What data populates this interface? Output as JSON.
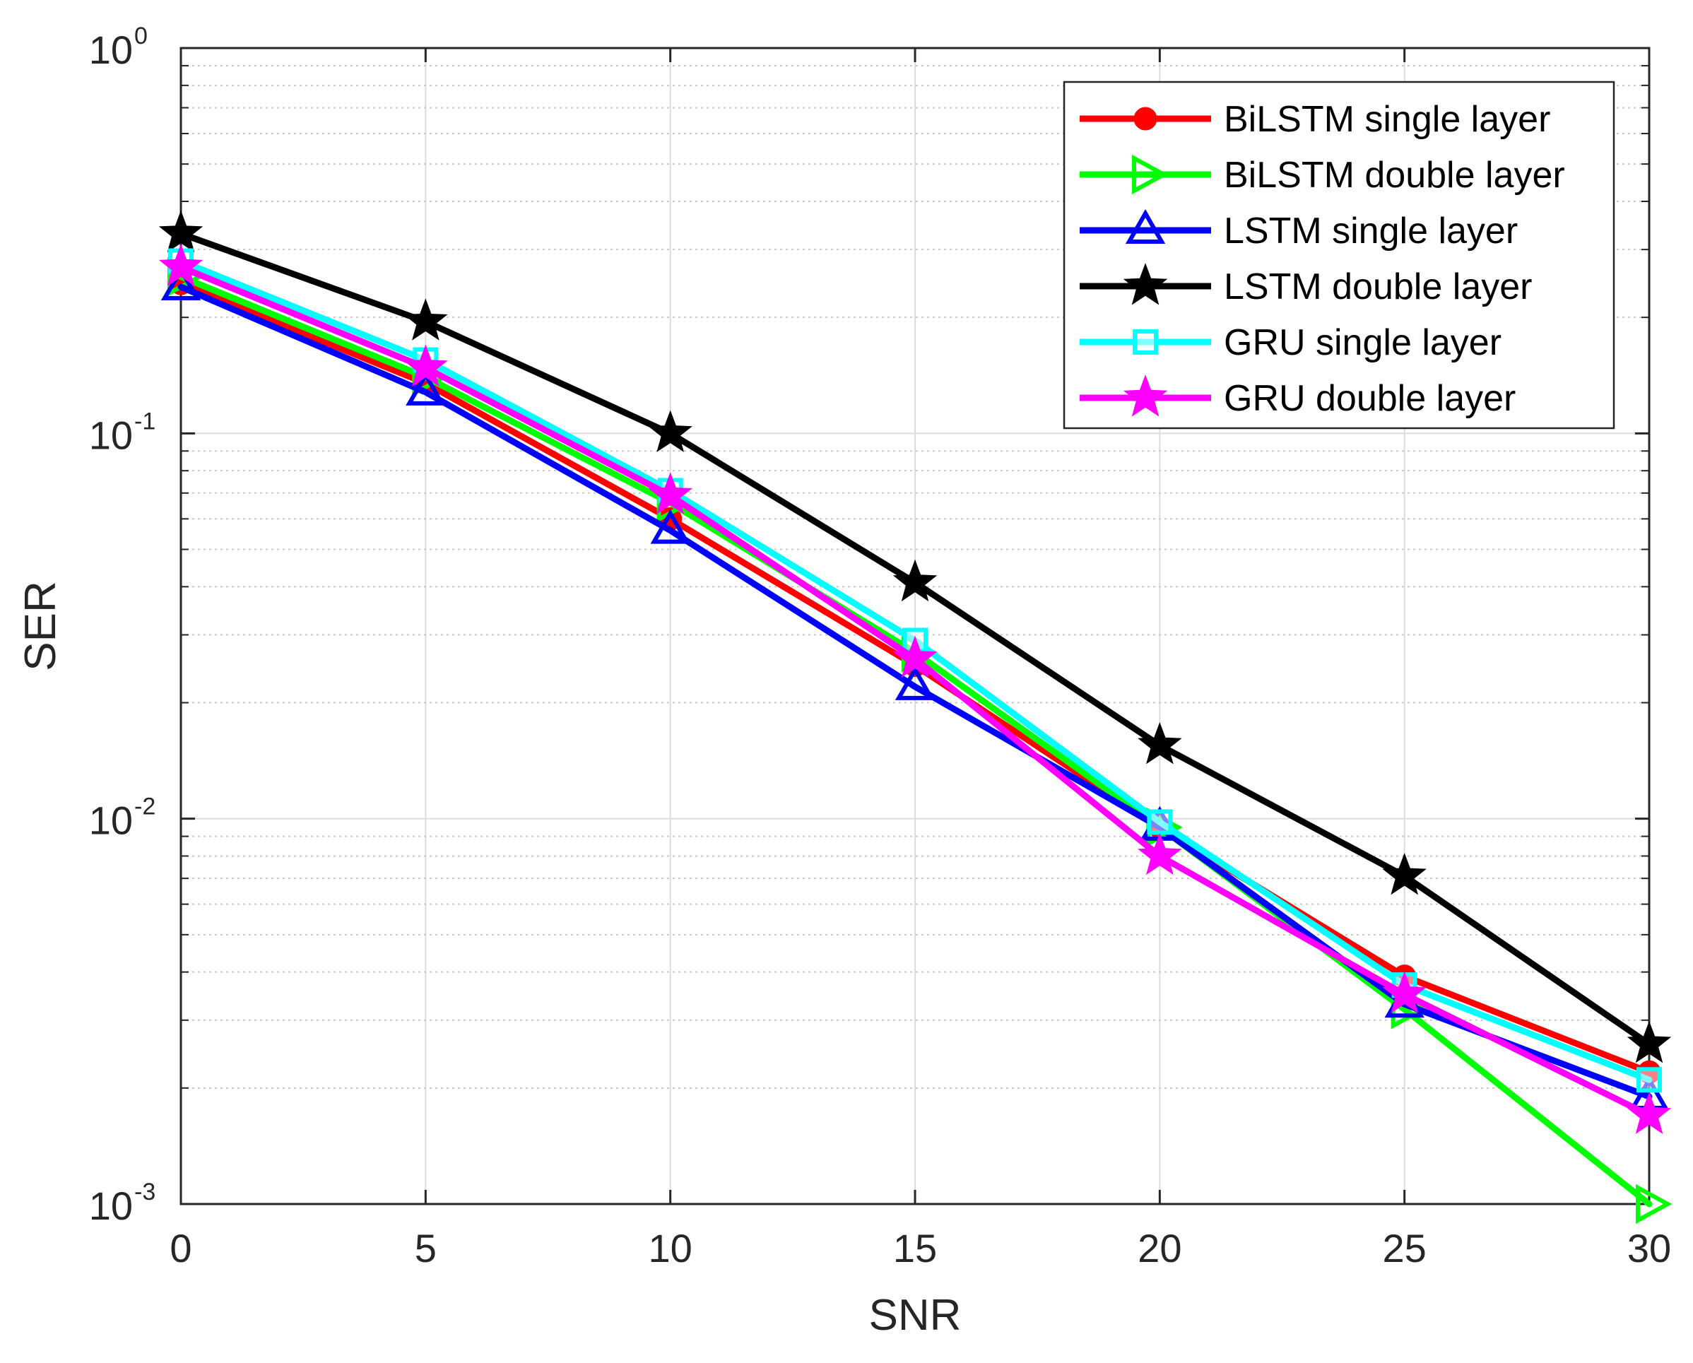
{
  "chart_data": {
    "type": "line",
    "title": "",
    "xlabel": "SNR",
    "ylabel": "SER",
    "x": [
      0,
      5,
      10,
      15,
      20,
      25,
      30
    ],
    "xlim": [
      0,
      30
    ],
    "ylim": [
      0.001,
      1
    ],
    "yscale": "log",
    "grid": true,
    "legend_position": "top-right",
    "x_ticks": [
      "0",
      "5",
      "10",
      "15",
      "20",
      "25",
      "30"
    ],
    "y_ticks": [
      {
        "value": 1,
        "base": "10",
        "exp": "0"
      },
      {
        "value": 0.1,
        "base": "10",
        "exp": "-1"
      },
      {
        "value": 0.01,
        "base": "10",
        "exp": "-2"
      },
      {
        "value": 0.001,
        "base": "10",
        "exp": "-3"
      }
    ],
    "series": [
      {
        "name": "BiLSTM single layer",
        "color": "#ff0000",
        "marker": "circle",
        "values": [
          0.245,
          0.135,
          0.06,
          0.025,
          0.0095,
          0.0039,
          0.0022
        ]
      },
      {
        "name": "BiLSTM double layer",
        "color": "#00ff00",
        "marker": "triangle-right",
        "values": [
          0.255,
          0.14,
          0.066,
          0.027,
          0.0095,
          0.0032,
          0.001
        ]
      },
      {
        "name": "LSTM single layer",
        "color": "#0000ff",
        "marker": "triangle-up",
        "values": [
          0.24,
          0.128,
          0.056,
          0.022,
          0.0095,
          0.0033,
          0.0019
        ]
      },
      {
        "name": "LSTM double layer",
        "color": "#000000",
        "marker": "star",
        "values": [
          0.33,
          0.195,
          0.1,
          0.041,
          0.0155,
          0.0071,
          0.0026
        ]
      },
      {
        "name": "GRU single layer",
        "color": "#00ffff",
        "marker": "square",
        "values": [
          0.28,
          0.155,
          0.071,
          0.029,
          0.0098,
          0.0037,
          0.0021
        ]
      },
      {
        "name": "GRU double layer",
        "color": "#ff00ff",
        "marker": "star",
        "values": [
          0.27,
          0.148,
          0.069,
          0.026,
          0.008,
          0.0035,
          0.0017
        ]
      }
    ]
  }
}
